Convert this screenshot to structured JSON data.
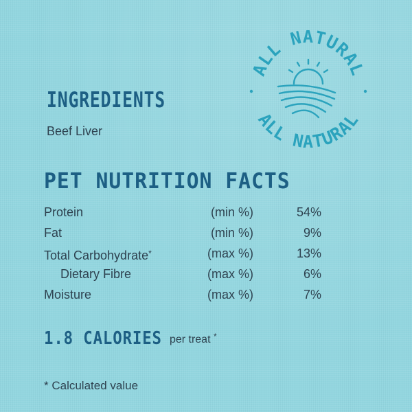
{
  "ingredients": {
    "heading": "INGREDIENTS",
    "list": "Beef Liver"
  },
  "badge": {
    "text": "ALL NATURAL",
    "icon": "sun-over-fields-icon",
    "color": "#2ba3bd"
  },
  "nutrition": {
    "heading": "PET NUTRITION FACTS",
    "rows": [
      {
        "nutrient": "Protein",
        "basis": "(min %)",
        "amount": "54%"
      },
      {
        "nutrient": "Fat",
        "basis": "(min %)",
        "amount": "9%"
      },
      {
        "nutrient": "Total Carbohydrate",
        "marker": "*",
        "basis": "(max %)",
        "amount": "13%"
      },
      {
        "nutrient": "Dietary Fibre",
        "basis": "(max %)",
        "amount": "6%"
      },
      {
        "nutrient": "Moisture",
        "basis": "(max %)",
        "amount": "7%"
      }
    ]
  },
  "calories": {
    "value": "1.8 CALORIES",
    "unit": "per treat",
    "marker": "*"
  },
  "footnote": "* Calculated value",
  "colors": {
    "background": "#93d6df",
    "heading": "#1d5f84",
    "body_text": "#2e4250",
    "badge": "#2ba3bd"
  }
}
